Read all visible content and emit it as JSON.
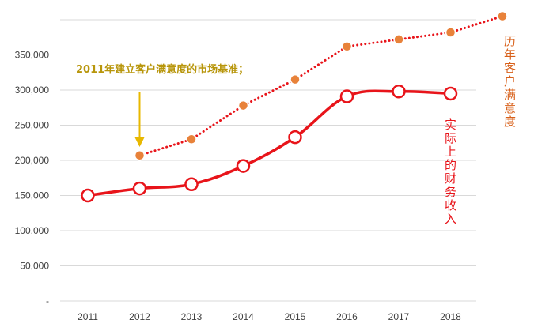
{
  "chart_data": {
    "type": "line",
    "x": [
      "2011",
      "2012",
      "2013",
      "2014",
      "2015",
      "2016",
      "2017",
      "2018"
    ],
    "yticks": [
      "-",
      "50,000",
      "100,000",
      "150,000",
      "200,000",
      "250,000",
      "300,000",
      "350,000"
    ],
    "ylim": [
      0,
      400000
    ],
    "grid": true,
    "series": [
      {
        "name": "历年客户满意度",
        "style": "dotted",
        "color": "#e8141a",
        "marker_color": "#e8823a",
        "x": [
          "2012",
          "2013",
          "2014",
          "2015",
          "2016",
          "2017",
          "2018",
          "2019"
        ],
        "values": [
          207000,
          230000,
          278000,
          315000,
          362000,
          372000,
          382000,
          405000
        ]
      },
      {
        "name": "实际上的财务收入",
        "style": "solid",
        "color": "#e8141a",
        "marker_color": "#ffffff",
        "x": [
          "2011",
          "2012",
          "2013",
          "2014",
          "2015",
          "2016",
          "2017",
          "2018"
        ],
        "values": [
          150000,
          160000,
          166000,
          192000,
          233000,
          291000,
          298000,
          295000
        ]
      }
    ],
    "annotation": {
      "text": "2011年建立客户满意度的市场基准；",
      "target_x": "2012",
      "color": "#e8b800"
    }
  }
}
